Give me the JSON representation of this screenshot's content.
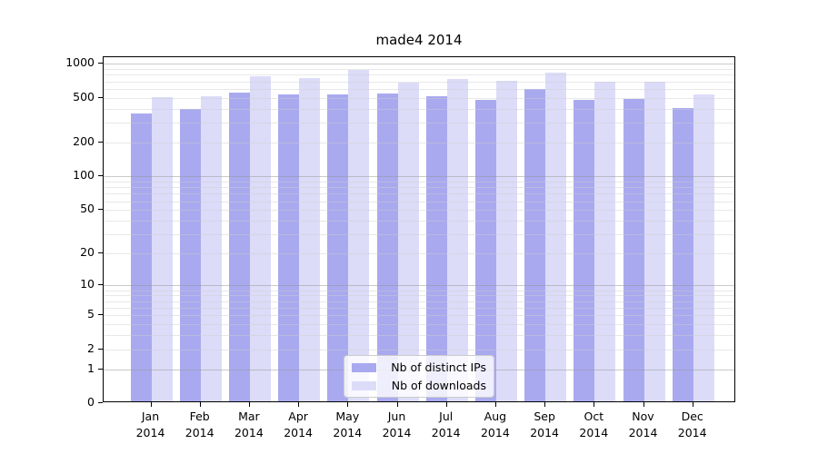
{
  "title": "made4 2014",
  "legend": {
    "items": [
      {
        "label": "Nb of distinct IPs",
        "color": "#a9a9f0"
      },
      {
        "label": "Nb of downloads",
        "color": "#dcdcf9"
      }
    ]
  },
  "chart_data": {
    "type": "bar",
    "title": "made4 2014",
    "categories": [
      "Jan",
      "Feb",
      "Mar",
      "Apr",
      "May",
      "Jun",
      "Jul",
      "Aug",
      "Sep",
      "Oct",
      "Nov",
      "Dec"
    ],
    "category_year": "2014",
    "series": [
      {
        "name": "Nb of distinct IPs",
        "color": "#a9a9f0",
        "values": [
          348,
          384,
          540,
          520,
          520,
          527,
          495,
          460,
          575,
          460,
          474,
          390
        ]
      },
      {
        "name": "Nb of downloads",
        "color": "#dcdcf9",
        "values": [
          492,
          497,
          745,
          717,
          848,
          658,
          705,
          680,
          806,
          665,
          668,
          514
        ]
      }
    ],
    "yaxis": {
      "scale": "log10(1+x)",
      "ticks": [
        0,
        1,
        2,
        5,
        10,
        20,
        50,
        100,
        200,
        500,
        1000
      ],
      "max": 1145
    },
    "xlabel": "",
    "ylabel": "",
    "grid": "horizontal major+minor, drawn over bars",
    "legend_position": "lower center"
  }
}
